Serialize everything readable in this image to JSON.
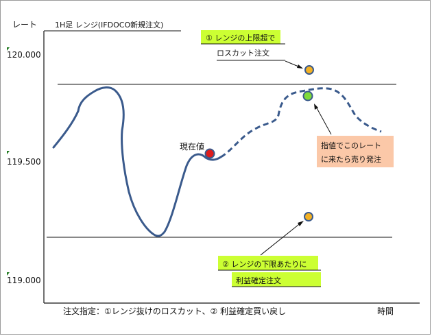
{
  "axis": {
    "y_label": "レート",
    "x_label": "時間",
    "y_ticks": [
      "120.000",
      "119.500",
      "119.000"
    ]
  },
  "header": {
    "title": "1H足 レンジ(IFDOCO新規注文)"
  },
  "labels": {
    "current_price": "現在値"
  },
  "callouts": {
    "upper": {
      "line1": "①  レンジの上限超で",
      "line2": "ロスカット注文"
    },
    "lower": {
      "line1": "②  レンジの下限あたりに",
      "line2": "利益確定注文"
    },
    "limit": {
      "line1": "指値でこのレート",
      "line2": "に来たら売り発注"
    }
  },
  "footer": {
    "note": "注文指定：①レンジ抜けのロスカット、② 利益確定買い戻し"
  },
  "colors": {
    "curve": "#3a5a8c",
    "current_marker": "#dd1c1c",
    "target_marker": "#f3b124",
    "entry_marker": "#7fdb3a",
    "callout_green": "#ccff33",
    "callout_peach": "#fbc8a8"
  }
}
